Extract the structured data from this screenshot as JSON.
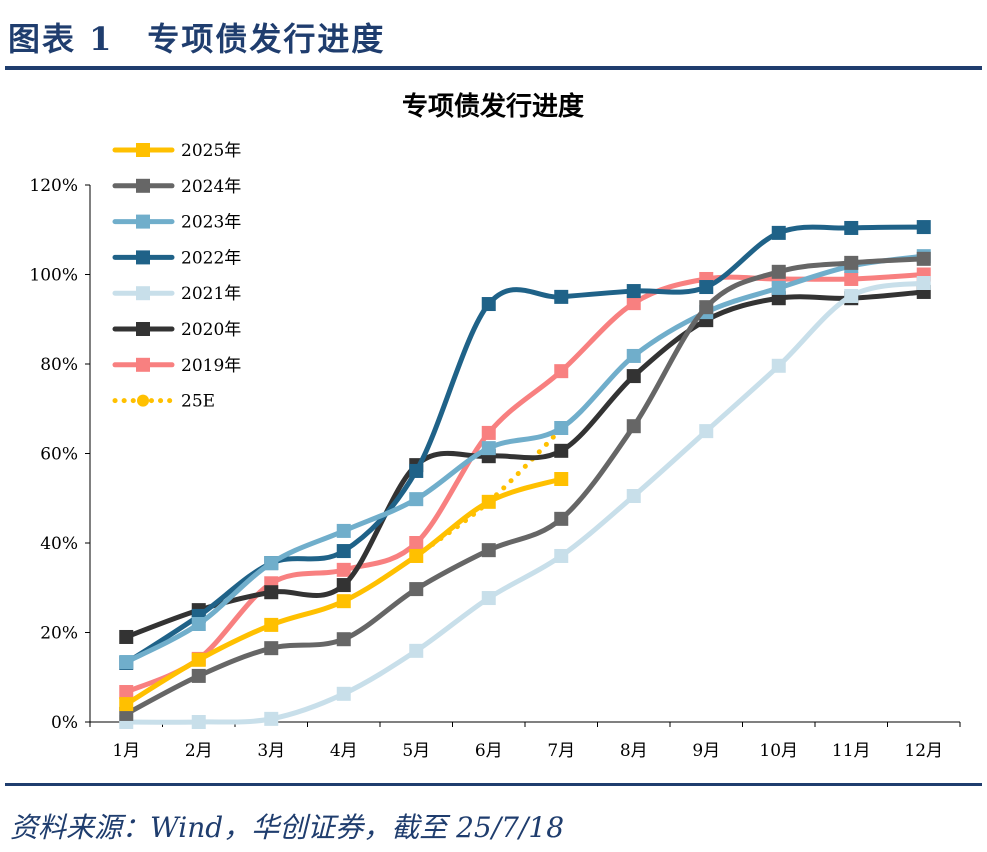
{
  "figure_title": "图表 1　专项债发行进度",
  "source": "资料来源：Wind，华创证券，截至 25/7/18",
  "chart_data": {
    "type": "line",
    "title": "专项债发行进度",
    "categories": [
      "1月",
      "2月",
      "3月",
      "4月",
      "5月",
      "6月",
      "7月",
      "8月",
      "9月",
      "10月",
      "11月",
      "12月"
    ],
    "ylim": [
      0,
      120
    ],
    "yticks": [
      "0%",
      "20%",
      "40%",
      "60%",
      "80%",
      "100%",
      "120%"
    ],
    "ytick_values": [
      0,
      20,
      40,
      60,
      80,
      100,
      120
    ],
    "legend_position": "top-left",
    "series": [
      {
        "name": "2025年",
        "color": "#FFC000",
        "style": "solid",
        "values": [
          4.0,
          13.9,
          21.7,
          27.0,
          37.1,
          49.2,
          54.3,
          null,
          null,
          null,
          null,
          null
        ]
      },
      {
        "name": "2024年",
        "color": "#666666",
        "style": "solid",
        "values": [
          1.8,
          10.3,
          16.5,
          18.5,
          29.7,
          38.4,
          45.4,
          66.1,
          92.7,
          100.6,
          102.6,
          103.5
        ]
      },
      {
        "name": "2023年",
        "color": "#70AECB",
        "style": "solid",
        "values": [
          13.4,
          21.9,
          35.5,
          42.7,
          49.8,
          61.2,
          65.7,
          81.8,
          91.6,
          97.0,
          101.9,
          104.1
        ]
      },
      {
        "name": "2022年",
        "color": "#1F6288",
        "style": "solid",
        "values": [
          13.2,
          23.7,
          35.5,
          38.2,
          56.1,
          93.4,
          95.0,
          96.3,
          97.2,
          109.3,
          110.4,
          110.6
        ]
      },
      {
        "name": "2021年",
        "color": "#C8DFEA",
        "style": "solid",
        "values": [
          0,
          0,
          0.7,
          6.3,
          15.9,
          27.7,
          37.1,
          50.5,
          65.0,
          79.6,
          95.2,
          98.1
        ]
      },
      {
        "name": "2020年",
        "color": "#333333",
        "style": "solid",
        "values": [
          19.0,
          25.0,
          29.0,
          30.6,
          57.4,
          59.4,
          60.6,
          77.3,
          89.8,
          94.7,
          94.7,
          96.1
        ]
      },
      {
        "name": "2019年",
        "color": "#F88080",
        "style": "solid",
        "values": [
          6.7,
          14.1,
          31.0,
          34.0,
          40.0,
          64.6,
          78.4,
          93.6,
          99.0,
          99.0,
          99.0,
          100.0
        ]
      },
      {
        "name": "25E",
        "color": "#FFC000",
        "style": "dotted",
        "values": [
          null,
          null,
          null,
          null,
          37.1,
          49.2,
          65.5,
          null,
          null,
          null,
          null,
          null
        ]
      }
    ]
  }
}
